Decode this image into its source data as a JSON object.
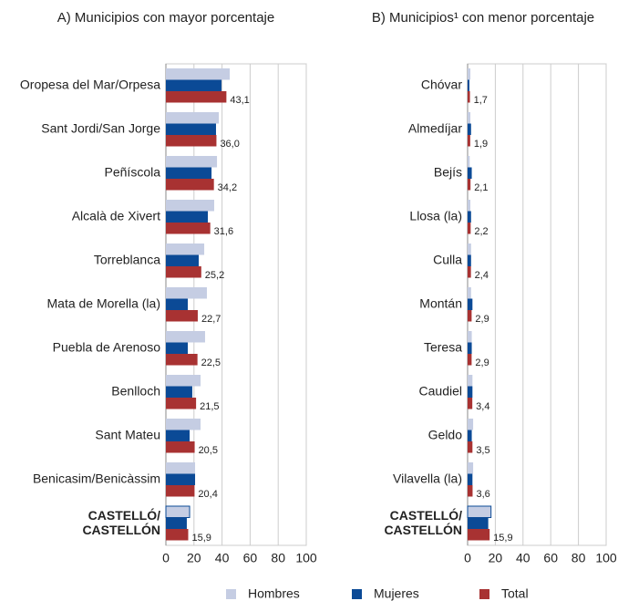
{
  "chart_data": [
    {
      "type": "bar",
      "title": "A) Municipios con mayor porcentaje",
      "orientation": "horizontal",
      "grid": true,
      "categories": [
        "Oropesa del Mar/Orpesa",
        "Sant Jordi/San Jorge",
        "Peñíscola",
        "Alcalà de Xivert",
        "Torreblanca",
        "Mata de Morella (la)",
        "Puebla de Arenoso",
        "Benlloch",
        "Sant Mateu",
        "Benicasim/Benicàssim",
        "CASTELLÓ/\nCASTELLÓN"
      ],
      "xlim": [
        0,
        100
      ],
      "xticks": [
        0,
        20,
        40,
        60,
        80,
        100
      ],
      "series": [
        {
          "name": "Hombres",
          "color": "#c5cde3",
          "values": [
            45.5,
            37.7,
            36.4,
            34.4,
            27.3,
            29.2,
            27.9,
            24.7,
            24.7,
            20.8,
            16.9
          ]
        },
        {
          "name": "Mujeres",
          "color": "#0b4a96",
          "values": [
            39.6,
            35.7,
            32.5,
            29.9,
            23.4,
            15.6,
            15.6,
            18.8,
            16.9,
            20.8,
            14.9
          ]
        },
        {
          "name": "Total",
          "color": "#a83232",
          "values": [
            43.1,
            36.0,
            34.2,
            31.6,
            25.2,
            22.7,
            22.5,
            21.5,
            20.5,
            20.4,
            15.9
          ],
          "value_labels": [
            "43,1",
            "36,0",
            "34,2",
            "31,6",
            "25,2",
            "22,7",
            "22,5",
            "21,5",
            "20,5",
            "20,4",
            "15,9"
          ]
        }
      ]
    },
    {
      "type": "bar",
      "title": "B) Municipios¹ con menor porcentaje",
      "orientation": "horizontal",
      "grid": true,
      "categories": [
        "Chóvar",
        "Almedíjar",
        "Bejís",
        "Llosa (la)",
        "Culla",
        "Montán",
        "Teresa",
        "Caudiel",
        "Geldo",
        "Vilavella (la)",
        "CASTELLÓ/\nCASTELLÓN"
      ],
      "xlim": [
        0,
        100
      ],
      "xticks": [
        0,
        20,
        40,
        60,
        80,
        100
      ],
      "series": [
        {
          "name": "Hombres",
          "color": "#c5cde3",
          "values": [
            2.0,
            2.0,
            1.5,
            2.0,
            2.5,
            2.5,
            3.0,
            3.5,
            4.0,
            4.0,
            16.9
          ]
        },
        {
          "name": "Mujeres",
          "color": "#0b4a96",
          "values": [
            1.3,
            2.5,
            3.0,
            2.5,
            2.5,
            3.5,
            3.0,
            3.5,
            3.0,
            3.5,
            14.9
          ]
        },
        {
          "name": "Total",
          "color": "#a83232",
          "values": [
            1.7,
            1.9,
            2.1,
            2.2,
            2.4,
            2.9,
            2.9,
            3.4,
            3.5,
            3.6,
            15.9
          ],
          "value_labels": [
            "1,7",
            "1,9",
            "2,1",
            "2,2",
            "2,4",
            "2,9",
            "2,9",
            "3,4",
            "3,5",
            "3,6",
            "15,9"
          ]
        }
      ]
    }
  ]
}
